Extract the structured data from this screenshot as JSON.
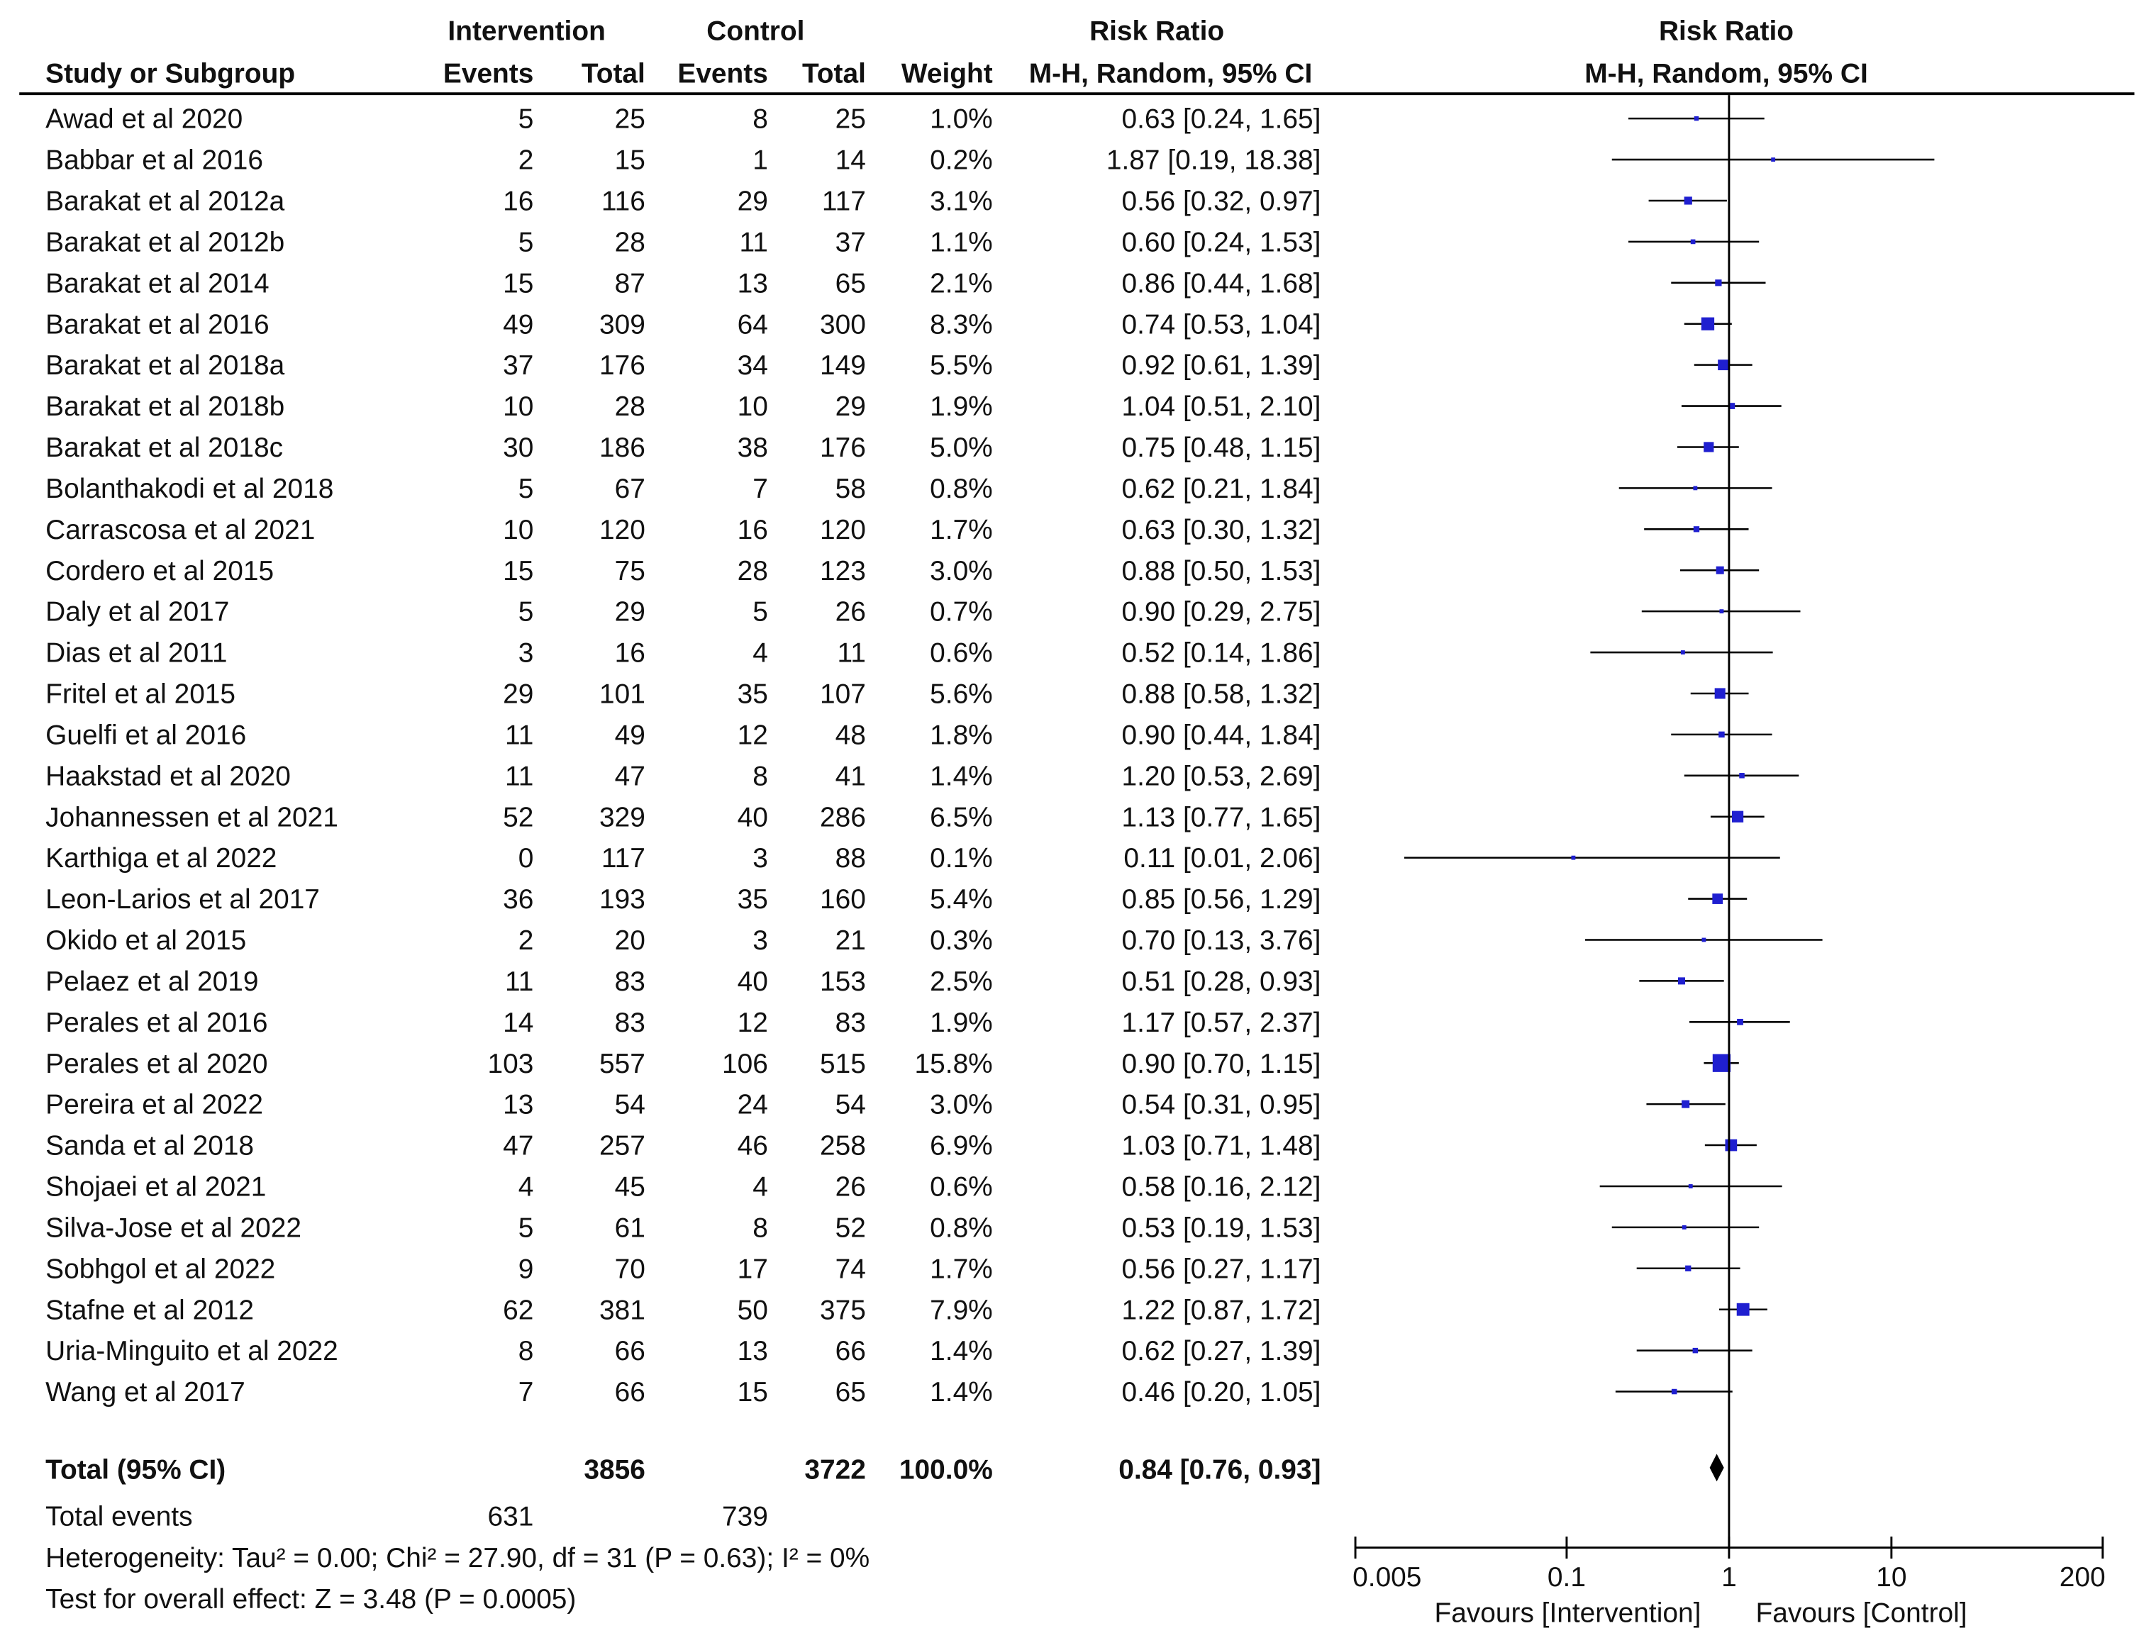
{
  "headers": {
    "group_intervention": "Intervention",
    "group_control": "Control",
    "risk_ratio": "Risk Ratio",
    "risk_ratio_plot": "Risk Ratio",
    "study": "Study or Subgroup",
    "events": "Events",
    "total": "Total",
    "events2": "Events",
    "total2": "Total",
    "weight": "Weight",
    "method": "M-H, Random, 95% CI",
    "method_plot": "M-H, Random, 95% CI"
  },
  "chart_data": {
    "type": "forest",
    "x_scale": "log",
    "xlim": [
      0.005,
      200
    ],
    "x_ticks": [
      {
        "value": 0.005,
        "label": "0.005"
      },
      {
        "value": 0.1,
        "label": "0.1"
      },
      {
        "value": 1,
        "label": "1"
      },
      {
        "value": 10,
        "label": "10"
      },
      {
        "value": 200,
        "label": "200"
      }
    ],
    "x_label_left": "Favours [Intervention]",
    "x_label_right": "Favours [Control]",
    "studies": [
      {
        "name": "Awad et al 2020",
        "ie": 5,
        "it": 25,
        "ce": 8,
        "ct": 25,
        "weight": "1.0%",
        "ci_text": "0.63 [0.24, 1.65]",
        "rr": 0.63,
        "lo": 0.24,
        "hi": 1.65,
        "w": 1.0
      },
      {
        "name": "Babbar et al 2016",
        "ie": 2,
        "it": 15,
        "ce": 1,
        "ct": 14,
        "weight": "0.2%",
        "ci_text": "1.87 [0.19, 18.38]",
        "rr": 1.87,
        "lo": 0.19,
        "hi": 18.38,
        "w": 0.2
      },
      {
        "name": "Barakat et al 2012a",
        "ie": 16,
        "it": 116,
        "ce": 29,
        "ct": 117,
        "weight": "3.1%",
        "ci_text": "0.56 [0.32, 0.97]",
        "rr": 0.56,
        "lo": 0.32,
        "hi": 0.97,
        "w": 3.1
      },
      {
        "name": "Barakat et al 2012b",
        "ie": 5,
        "it": 28,
        "ce": 11,
        "ct": 37,
        "weight": "1.1%",
        "ci_text": "0.60 [0.24, 1.53]",
        "rr": 0.6,
        "lo": 0.24,
        "hi": 1.53,
        "w": 1.1
      },
      {
        "name": "Barakat et al 2014",
        "ie": 15,
        "it": 87,
        "ce": 13,
        "ct": 65,
        "weight": "2.1%",
        "ci_text": "0.86 [0.44, 1.68]",
        "rr": 0.86,
        "lo": 0.44,
        "hi": 1.68,
        "w": 2.1
      },
      {
        "name": "Barakat et al 2016",
        "ie": 49,
        "it": 309,
        "ce": 64,
        "ct": 300,
        "weight": "8.3%",
        "ci_text": "0.74 [0.53, 1.04]",
        "rr": 0.74,
        "lo": 0.53,
        "hi": 1.04,
        "w": 8.3
      },
      {
        "name": "Barakat et al 2018a",
        "ie": 37,
        "it": 176,
        "ce": 34,
        "ct": 149,
        "weight": "5.5%",
        "ci_text": "0.92 [0.61, 1.39]",
        "rr": 0.92,
        "lo": 0.61,
        "hi": 1.39,
        "w": 5.5
      },
      {
        "name": "Barakat et al 2018b",
        "ie": 10,
        "it": 28,
        "ce": 10,
        "ct": 29,
        "weight": "1.9%",
        "ci_text": "1.04 [0.51, 2.10]",
        "rr": 1.04,
        "lo": 0.51,
        "hi": 2.1,
        "w": 1.9
      },
      {
        "name": "Barakat et al 2018c",
        "ie": 30,
        "it": 186,
        "ce": 38,
        "ct": 176,
        "weight": "5.0%",
        "ci_text": "0.75 [0.48, 1.15]",
        "rr": 0.75,
        "lo": 0.48,
        "hi": 1.15,
        "w": 5.0
      },
      {
        "name": "Bolanthakodi et al 2018",
        "ie": 5,
        "it": 67,
        "ce": 7,
        "ct": 58,
        "weight": "0.8%",
        "ci_text": "0.62 [0.21, 1.84]",
        "rr": 0.62,
        "lo": 0.21,
        "hi": 1.84,
        "w": 0.8
      },
      {
        "name": "Carrascosa et al 2021",
        "ie": 10,
        "it": 120,
        "ce": 16,
        "ct": 120,
        "weight": "1.7%",
        "ci_text": "0.63 [0.30, 1.32]",
        "rr": 0.63,
        "lo": 0.3,
        "hi": 1.32,
        "w": 1.7
      },
      {
        "name": "Cordero et al 2015",
        "ie": 15,
        "it": 75,
        "ce": 28,
        "ct": 123,
        "weight": "3.0%",
        "ci_text": "0.88 [0.50, 1.53]",
        "rr": 0.88,
        "lo": 0.5,
        "hi": 1.53,
        "w": 3.0
      },
      {
        "name": "Daly et al 2017",
        "ie": 5,
        "it": 29,
        "ce": 5,
        "ct": 26,
        "weight": "0.7%",
        "ci_text": "0.90 [0.29, 2.75]",
        "rr": 0.9,
        "lo": 0.29,
        "hi": 2.75,
        "w": 0.7
      },
      {
        "name": "Dias et al 2011",
        "ie": 3,
        "it": 16,
        "ce": 4,
        "ct": 11,
        "weight": "0.6%",
        "ci_text": "0.52 [0.14, 1.86]",
        "rr": 0.52,
        "lo": 0.14,
        "hi": 1.86,
        "w": 0.6
      },
      {
        "name": "Fritel et al 2015",
        "ie": 29,
        "it": 101,
        "ce": 35,
        "ct": 107,
        "weight": "5.6%",
        "ci_text": "0.88 [0.58, 1.32]",
        "rr": 0.88,
        "lo": 0.58,
        "hi": 1.32,
        "w": 5.6
      },
      {
        "name": "Guelfi et al 2016",
        "ie": 11,
        "it": 49,
        "ce": 12,
        "ct": 48,
        "weight": "1.8%",
        "ci_text": "0.90 [0.44, 1.84]",
        "rr": 0.9,
        "lo": 0.44,
        "hi": 1.84,
        "w": 1.8
      },
      {
        "name": "Haakstad et al 2020",
        "ie": 11,
        "it": 47,
        "ce": 8,
        "ct": 41,
        "weight": "1.4%",
        "ci_text": "1.20 [0.53, 2.69]",
        "rr": 1.2,
        "lo": 0.53,
        "hi": 2.69,
        "w": 1.4
      },
      {
        "name": "Johannessen et al 2021",
        "ie": 52,
        "it": 329,
        "ce": 40,
        "ct": 286,
        "weight": "6.5%",
        "ci_text": "1.13 [0.77, 1.65]",
        "rr": 1.13,
        "lo": 0.77,
        "hi": 1.65,
        "w": 6.5
      },
      {
        "name": "Karthiga et al 2022",
        "ie": 0,
        "it": 117,
        "ce": 3,
        "ct": 88,
        "weight": "0.1%",
        "ci_text": "0.11 [0.01, 2.06]",
        "rr": 0.11,
        "lo": 0.01,
        "hi": 2.06,
        "w": 0.1
      },
      {
        "name": "Leon-Larios et al 2017",
        "ie": 36,
        "it": 193,
        "ce": 35,
        "ct": 160,
        "weight": "5.4%",
        "ci_text": "0.85 [0.56, 1.29]",
        "rr": 0.85,
        "lo": 0.56,
        "hi": 1.29,
        "w": 5.4
      },
      {
        "name": "Okido et al 2015",
        "ie": 2,
        "it": 20,
        "ce": 3,
        "ct": 21,
        "weight": "0.3%",
        "ci_text": "0.70 [0.13, 3.76]",
        "rr": 0.7,
        "lo": 0.13,
        "hi": 3.76,
        "w": 0.3
      },
      {
        "name": "Pelaez et al 2019",
        "ie": 11,
        "it": 83,
        "ce": 40,
        "ct": 153,
        "weight": "2.5%",
        "ci_text": "0.51 [0.28, 0.93]",
        "rr": 0.51,
        "lo": 0.28,
        "hi": 0.93,
        "w": 2.5
      },
      {
        "name": "Perales et al 2016",
        "ie": 14,
        "it": 83,
        "ce": 12,
        "ct": 83,
        "weight": "1.9%",
        "ci_text": "1.17 [0.57, 2.37]",
        "rr": 1.17,
        "lo": 0.57,
        "hi": 2.37,
        "w": 1.9
      },
      {
        "name": "Perales et al 2020",
        "ie": 103,
        "it": 557,
        "ce": 106,
        "ct": 515,
        "weight": "15.8%",
        "ci_text": "0.90 [0.70, 1.15]",
        "rr": 0.9,
        "lo": 0.7,
        "hi": 1.15,
        "w": 15.8
      },
      {
        "name": "Pereira et al 2022",
        "ie": 13,
        "it": 54,
        "ce": 24,
        "ct": 54,
        "weight": "3.0%",
        "ci_text": "0.54 [0.31, 0.95]",
        "rr": 0.54,
        "lo": 0.31,
        "hi": 0.95,
        "w": 3.0
      },
      {
        "name": "Sanda et al 2018",
        "ie": 47,
        "it": 257,
        "ce": 46,
        "ct": 258,
        "weight": "6.9%",
        "ci_text": "1.03 [0.71, 1.48]",
        "rr": 1.03,
        "lo": 0.71,
        "hi": 1.48,
        "w": 6.9
      },
      {
        "name": "Shojaei et al 2021",
        "ie": 4,
        "it": 45,
        "ce": 4,
        "ct": 26,
        "weight": "0.6%",
        "ci_text": "0.58 [0.16, 2.12]",
        "rr": 0.58,
        "lo": 0.16,
        "hi": 2.12,
        "w": 0.6
      },
      {
        "name": "Silva-Jose et al 2022",
        "ie": 5,
        "it": 61,
        "ce": 8,
        "ct": 52,
        "weight": "0.8%",
        "ci_text": "0.53 [0.19, 1.53]",
        "rr": 0.53,
        "lo": 0.19,
        "hi": 1.53,
        "w": 0.8
      },
      {
        "name": "Sobhgol et al 2022",
        "ie": 9,
        "it": 70,
        "ce": 17,
        "ct": 74,
        "weight": "1.7%",
        "ci_text": "0.56 [0.27, 1.17]",
        "rr": 0.56,
        "lo": 0.27,
        "hi": 1.17,
        "w": 1.7
      },
      {
        "name": "Stafne et al 2012",
        "ie": 62,
        "it": 381,
        "ce": 50,
        "ct": 375,
        "weight": "7.9%",
        "ci_text": "1.22 [0.87, 1.72]",
        "rr": 1.22,
        "lo": 0.87,
        "hi": 1.72,
        "w": 7.9
      },
      {
        "name": "Uria-Minguito et al 2022",
        "ie": 8,
        "it": 66,
        "ce": 13,
        "ct": 66,
        "weight": "1.4%",
        "ci_text": "0.62 [0.27, 1.39]",
        "rr": 0.62,
        "lo": 0.27,
        "hi": 1.39,
        "w": 1.4
      },
      {
        "name": "Wang et al 2017",
        "ie": 7,
        "it": 66,
        "ce": 15,
        "ct": 65,
        "weight": "1.4%",
        "ci_text": "0.46 [0.20, 1.05]",
        "rr": 0.46,
        "lo": 0.2,
        "hi": 1.05,
        "w": 1.4
      }
    ],
    "total": {
      "label": "Total (95% CI)",
      "it": 3856,
      "ct": 3722,
      "weight": "100.0%",
      "ci_text": "0.84 [0.76, 0.93]",
      "rr": 0.84,
      "lo": 0.76,
      "hi": 0.93
    },
    "total_events": {
      "label": "Total events",
      "ie": 631,
      "ce": 739
    },
    "heterogeneity": "Heterogeneity: Tau² = 0.00; Chi² = 27.90, df = 31 (P = 0.63); I² = 0%",
    "overall_effect": "Test for overall effect: Z = 3.48 (P = 0.0005)",
    "colors": {
      "marker": "#1f1fd0",
      "line": "#000000",
      "text": "#111111"
    }
  }
}
